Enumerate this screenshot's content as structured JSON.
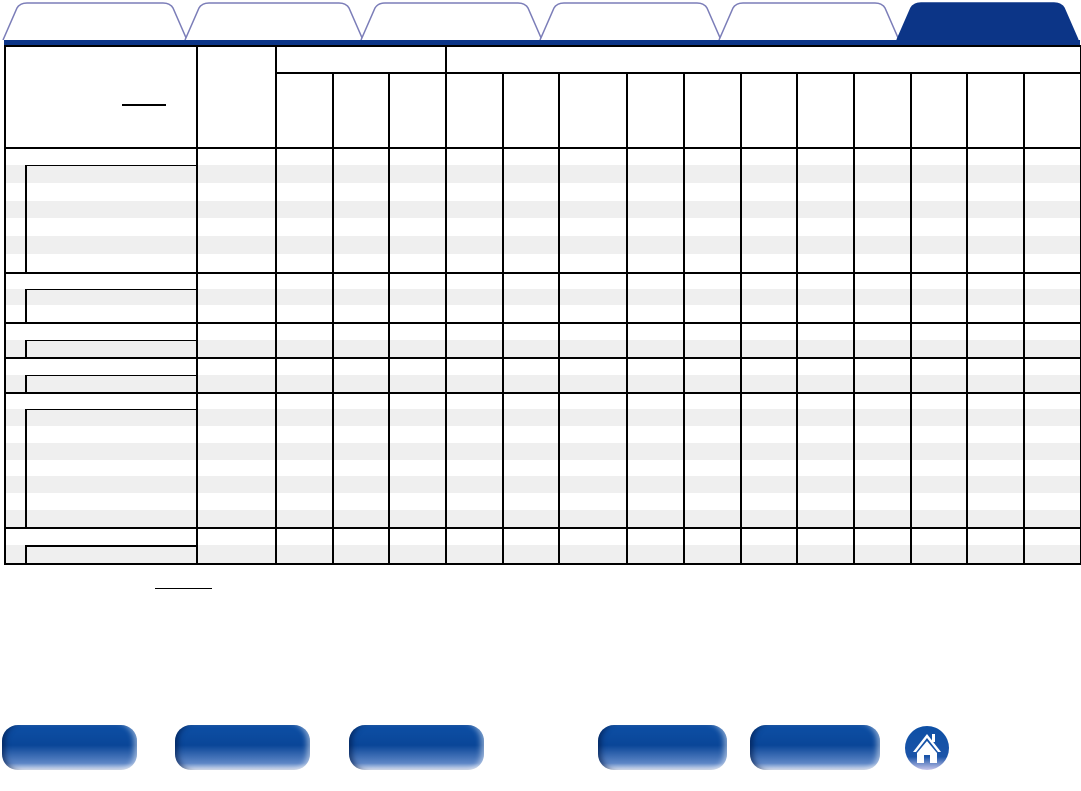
{
  "colors": {
    "accent": "#0c3587",
    "tab_outline": "#7b7db8",
    "stripe": "#efefef",
    "button": "#0a4698"
  },
  "tabs": [
    {
      "active": false
    },
    {
      "active": false
    },
    {
      "active": false
    },
    {
      "active": false
    },
    {
      "active": false
    },
    {
      "active": true
    }
  ],
  "nav_buttons": [
    {
      "icon": "nav-button"
    },
    {
      "icon": "nav-button"
    },
    {
      "icon": "nav-button"
    },
    {
      "icon": "nav-button"
    },
    {
      "icon": "nav-button"
    }
  ],
  "home": {
    "icon": "home-icon"
  }
}
